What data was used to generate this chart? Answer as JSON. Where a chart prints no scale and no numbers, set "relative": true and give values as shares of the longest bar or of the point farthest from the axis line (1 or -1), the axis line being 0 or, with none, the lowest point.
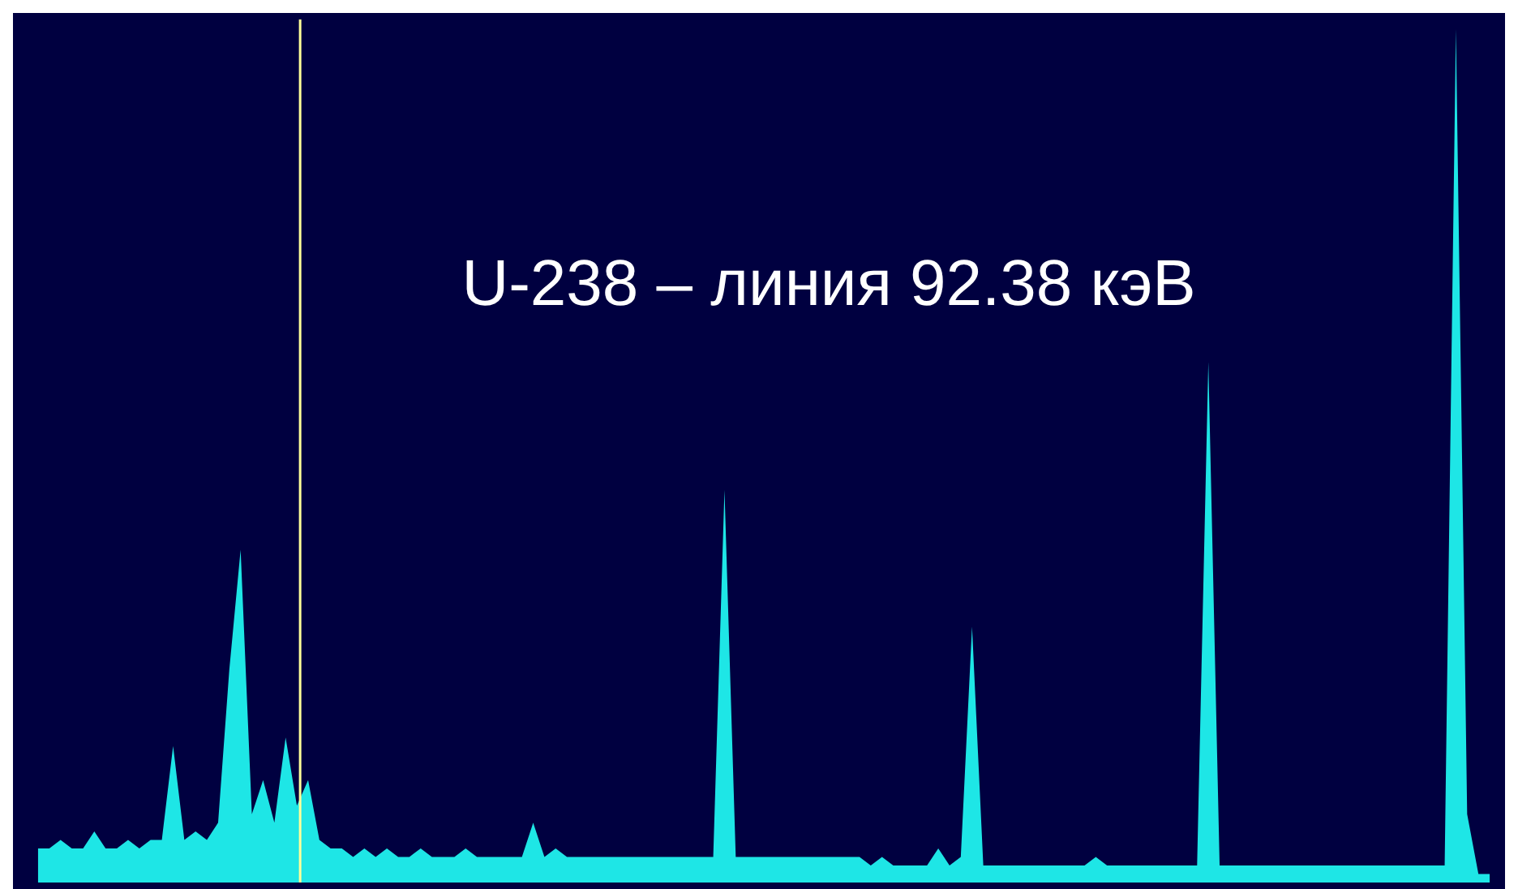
{
  "chart_data": {
    "type": "area",
    "relative": true,
    "color": "#1ee6e6",
    "categories": [
      null,
      null,
      null,
      null,
      null,
      null,
      null,
      null,
      null,
      null,
      null,
      null,
      null,
      null,
      null,
      null,
      null,
      null,
      null,
      null,
      null,
      null,
      null,
      null,
      null,
      null,
      null,
      null,
      null,
      null,
      null,
      null,
      null,
      null,
      null,
      null,
      null,
      null,
      null,
      null,
      null,
      null,
      null,
      null,
      null,
      null,
      null,
      null,
      null,
      null,
      null,
      null,
      null,
      null,
      null,
      null,
      null,
      null,
      null,
      null,
      null,
      null,
      null,
      null,
      null,
      null,
      null,
      null,
      null,
      null,
      null,
      null,
      null,
      null,
      null,
      null,
      null,
      null,
      null,
      null,
      null,
      null,
      null,
      null,
      null,
      null,
      null,
      null,
      null,
      null,
      null,
      null,
      null,
      null,
      null,
      null,
      null,
      null,
      null,
      null,
      null,
      null,
      null,
      null,
      null,
      null,
      null,
      null,
      null,
      null,
      null,
      null,
      null,
      null,
      null,
      null,
      null,
      null,
      null,
      null,
      null,
      null,
      null,
      null,
      null,
      null,
      null,
      null,
      null,
      null
    ],
    "values": [
      0.04,
      0.04,
      0.05,
      0.04,
      0.04,
      0.06,
      0.04,
      0.04,
      0.05,
      0.04,
      0.05,
      0.05,
      0.16,
      0.05,
      0.06,
      0.05,
      0.07,
      0.25,
      0.39,
      0.08,
      0.12,
      0.07,
      0.17,
      0.09,
      0.12,
      0.05,
      0.04,
      0.04,
      0.03,
      0.04,
      0.03,
      0.04,
      0.03,
      0.03,
      0.04,
      0.03,
      0.03,
      0.03,
      0.04,
      0.03,
      0.03,
      0.03,
      0.03,
      0.03,
      0.07,
      0.03,
      0.04,
      0.03,
      0.03,
      0.03,
      0.03,
      0.03,
      0.03,
      0.03,
      0.03,
      0.03,
      0.03,
      0.03,
      0.03,
      0.03,
      0.03,
      0.46,
      0.03,
      0.03,
      0.03,
      0.03,
      0.03,
      0.03,
      0.03,
      0.03,
      0.03,
      0.03,
      0.03,
      0.03,
      0.02,
      0.03,
      0.02,
      0.02,
      0.02,
      0.02,
      0.04,
      0.02,
      0.03,
      0.3,
      0.02,
      0.02,
      0.02,
      0.02,
      0.02,
      0.02,
      0.02,
      0.02,
      0.02,
      0.02,
      0.03,
      0.02,
      0.02,
      0.02,
      0.02,
      0.02,
      0.02,
      0.02,
      0.02,
      0.02,
      0.61,
      0.02,
      0.02,
      0.02,
      0.02,
      0.02,
      0.02,
      0.02,
      0.02,
      0.02,
      0.02,
      0.02,
      0.02,
      0.02,
      0.02,
      0.02,
      0.02,
      0.02,
      0.02,
      0.02,
      0.02,
      0.02,
      1,
      0.08,
      0.01,
      0.01
    ],
    "annotations": [
      "U-238 – линия 92.38 кэВ"
    ]
  }
}
